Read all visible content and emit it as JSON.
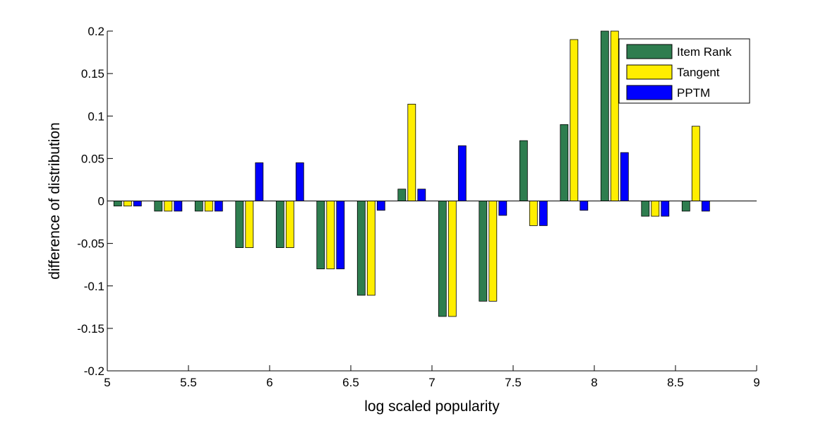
{
  "chart_data": {
    "type": "bar",
    "title": "",
    "xlabel": "log scaled popularity",
    "ylabel": "difference of distribution",
    "xlim": [
      5,
      9
    ],
    "ylim": [
      -0.2,
      0.2
    ],
    "xticks": [
      "5",
      "5.5",
      "6",
      "6.5",
      "7",
      "7.5",
      "8",
      "8.5",
      "9"
    ],
    "yticks": [
      "-0.2",
      "-0.15",
      "-0.1",
      "-0.05",
      "0",
      "0.05",
      "0.1",
      "0.15",
      "0.2"
    ],
    "grid": false,
    "legend_position": "top-right",
    "x": [
      5.125,
      5.375,
      5.625,
      5.875,
      6.125,
      6.375,
      6.625,
      6.875,
      7.125,
      7.375,
      7.625,
      7.875,
      8.125,
      8.375,
      8.625
    ],
    "series": [
      {
        "name": "Item Rank",
        "color": "#2e7d4f",
        "values": [
          -0.006,
          -0.012,
          -0.012,
          -0.055,
          -0.055,
          -0.08,
          -0.111,
          0.014,
          -0.136,
          -0.118,
          0.071,
          0.09,
          0.2,
          -0.018,
          -0.012
        ]
      },
      {
        "name": "Tangent",
        "color": "#ffee00",
        "values": [
          -0.006,
          -0.012,
          -0.012,
          -0.055,
          -0.055,
          -0.08,
          -0.111,
          0.114,
          -0.136,
          -0.118,
          -0.029,
          0.19,
          0.2,
          -0.018,
          0.088
        ]
      },
      {
        "name": "PPTM",
        "color": "#0000ff",
        "values": [
          -0.006,
          -0.012,
          -0.012,
          0.045,
          0.045,
          -0.08,
          -0.011,
          0.014,
          0.065,
          -0.017,
          -0.029,
          -0.011,
          0.057,
          -0.018,
          -0.012
        ]
      }
    ]
  }
}
